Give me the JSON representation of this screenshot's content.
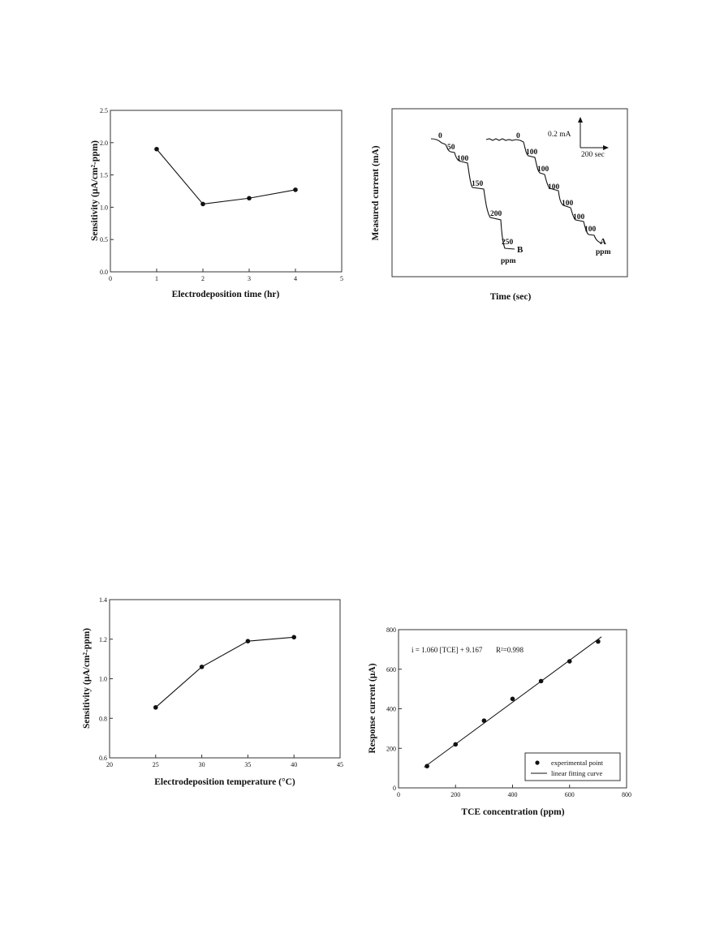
{
  "chart_data": [
    {
      "type": "line",
      "title": "",
      "xlabel": "Electrodeposition time (hr)",
      "ylabel": "Sensitivity (μA/cm²-ppm)",
      "xlim": [
        0,
        5
      ],
      "ylim": [
        0.0,
        2.5
      ],
      "xticks": [
        "0",
        "1",
        "2",
        "3",
        "4",
        "5"
      ],
      "yticks": [
        "0.0",
        "0.5",
        "1.0",
        "1.5",
        "2.0",
        "2.5"
      ],
      "x": [
        1,
        2,
        3,
        4
      ],
      "values": [
        1.9,
        1.05,
        1.14,
        1.27
      ],
      "marker": "filled-circle",
      "grid": false
    },
    {
      "type": "line",
      "title": "",
      "xlabel": "Time (sec)",
      "ylabel": "Measured current (mA)",
      "scale_bar": {
        "current": "0.2 mA",
        "time": "200 sec"
      },
      "series": [
        {
          "name": "B",
          "step_labels": [
            "0",
            "50",
            "100",
            "150",
            "200",
            "250"
          ],
          "unit_label": "ppm"
        },
        {
          "name": "A",
          "step_labels": [
            "0",
            "100",
            "100",
            "100",
            "100",
            "100",
            "100"
          ],
          "unit_label": "ppm"
        }
      ],
      "grid": false
    },
    {
      "type": "line",
      "title": "",
      "xlabel": "Electrodeposition temperature (°C)",
      "ylabel": "Sensitivity (μA/cm²-ppm)",
      "xlim": [
        20,
        45
      ],
      "ylim": [
        0.6,
        1.4
      ],
      "xticks": [
        "20",
        "25",
        "30",
        "35",
        "40",
        "45"
      ],
      "yticks": [
        "0.6",
        "0.8",
        "1.0",
        "1.2",
        "1.4"
      ],
      "x": [
        25,
        30,
        35,
        40
      ],
      "values": [
        0.855,
        1.06,
        1.19,
        1.21
      ],
      "marker": "filled-circle",
      "grid": false
    },
    {
      "type": "scatter",
      "title": "",
      "xlabel": "TCE concentration (ppm)",
      "ylabel": "Response current (μA)",
      "xlim": [
        0,
        800
      ],
      "ylim": [
        0,
        800
      ],
      "xticks": [
        "0",
        "200",
        "400",
        "600",
        "800"
      ],
      "yticks": [
        "0",
        "200",
        "400",
        "600",
        "800"
      ],
      "equation": "i = 1.060 [TCE] + 9.167",
      "r_squared": "R²=0.998",
      "fit": {
        "slope": 1.06,
        "intercept": 9.167
      },
      "x": [
        100,
        200,
        300,
        400,
        500,
        600,
        700
      ],
      "values": [
        110,
        220,
        340,
        450,
        540,
        640,
        740
      ],
      "legend": {
        "position": "bottom-right",
        "entries": [
          "experimental point",
          "linear fitting curve"
        ]
      },
      "grid": false
    }
  ]
}
